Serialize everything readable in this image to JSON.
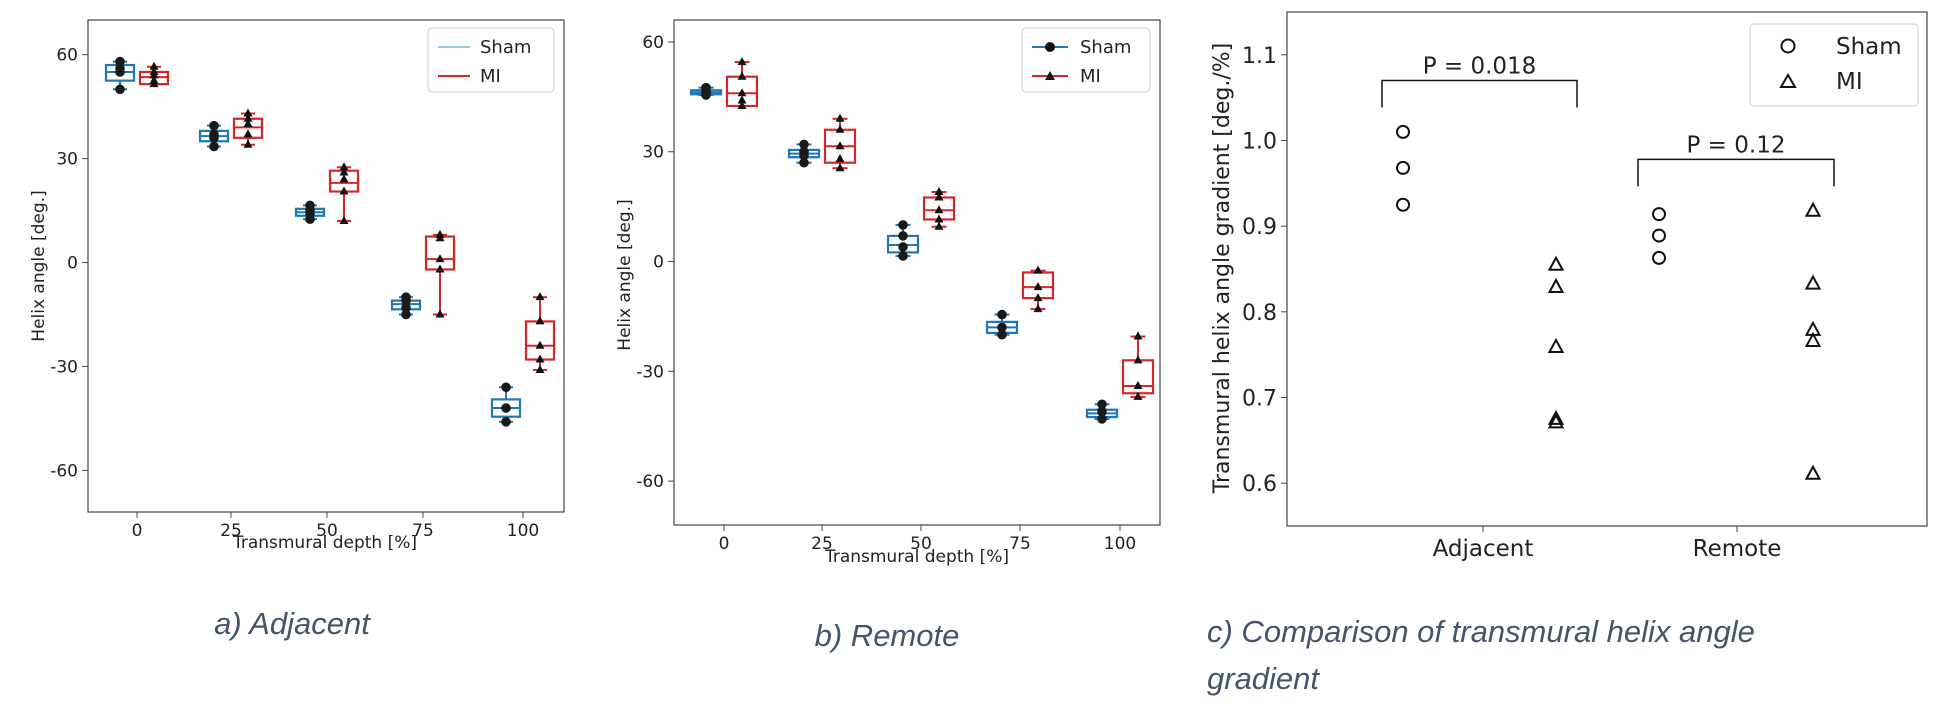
{
  "colors": {
    "sham": "#1f77b4",
    "mi": "#d62728",
    "sham_legend": "#9ecae1",
    "caption": "#44546a",
    "frame": "#444444"
  },
  "chart_data": [
    {
      "id": "a",
      "type": "box",
      "caption": "a) Adjacent",
      "xlabel": "Transmural depth [%]",
      "ylabel": "Helix angle [deg.]",
      "ylim": [
        -72,
        70
      ],
      "yticks": [
        60,
        30,
        0,
        -30,
        -60
      ],
      "categories": [
        "0",
        "25",
        "50",
        "75",
        "100"
      ],
      "legend": {
        "placement": "top-right",
        "entries": [
          "Sham",
          "MI"
        ],
        "markers": false
      },
      "series": [
        {
          "name": "Sham",
          "boxes": [
            {
              "min": 50,
              "q1": 52.5,
              "median": 55,
              "q3": 57,
              "max": 58,
              "points": [
                58,
                56,
                55,
                50
              ]
            },
            {
              "min": 33.5,
              "q1": 35,
              "median": 36.5,
              "q3": 38,
              "max": 39.5,
              "points": [
                39.5,
                37,
                36,
                33.5
              ]
            },
            {
              "min": 12.5,
              "q1": 13.5,
              "median": 14.5,
              "q3": 15.5,
              "max": 16.5,
              "points": [
                16.5,
                15,
                14,
                12.5
              ]
            },
            {
              "min": -15,
              "q1": -13.5,
              "median": -12,
              "q3": -11,
              "max": -10,
              "points": [
                -10,
                -11,
                -13,
                -15
              ]
            },
            {
              "min": -46,
              "q1": -44.5,
              "median": -42,
              "q3": -39.5,
              "max": -36,
              "points": [
                -36,
                -42,
                -46
              ]
            }
          ]
        },
        {
          "name": "MI",
          "boxes": [
            {
              "min": 51.5,
              "q1": 51.5,
              "median": 53.5,
              "q3": 55,
              "max": 56.5,
              "points": [
                56.5,
                55,
                54,
                52.5,
                51.5
              ]
            },
            {
              "min": 34,
              "q1": 36,
              "median": 39,
              "q3": 41.5,
              "max": 43,
              "points": [
                43,
                41.5,
                40,
                37,
                34
              ]
            },
            {
              "min": 12,
              "q1": 20.5,
              "median": 23,
              "q3": 26.5,
              "max": 27.5,
              "points": [
                27.5,
                26,
                24,
                20.5,
                12
              ]
            },
            {
              "min": -15,
              "q1": -2,
              "median": 1,
              "q3": 7.5,
              "max": 8,
              "points": [
                8,
                7,
                1,
                -2,
                -15
              ]
            },
            {
              "min": -31,
              "q1": -28,
              "median": -24,
              "q3": -17,
              "max": -10,
              "points": [
                -10,
                -17,
                -24,
                -28,
                -31
              ]
            }
          ]
        }
      ]
    },
    {
      "id": "b",
      "type": "box",
      "caption": "b) Remote",
      "xlabel": "Transmural depth [%]",
      "ylabel": "Helix angle [deg.]",
      "ylim": [
        -72,
        66
      ],
      "yticks": [
        60,
        30,
        0,
        -30,
        -60
      ],
      "categories": [
        "0",
        "25",
        "50",
        "75",
        "100"
      ],
      "legend": {
        "placement": "top-right",
        "entries": [
          "Sham",
          "MI"
        ],
        "markers": true
      },
      "series": [
        {
          "name": "Sham",
          "boxes": [
            {
              "min": 45.5,
              "q1": 45.7,
              "median": 46.2,
              "q3": 46.8,
              "max": 47.5,
              "points": [
                47.5,
                46.5,
                46,
                45.5
              ]
            },
            {
              "min": 27,
              "q1": 28.5,
              "median": 29.5,
              "q3": 30.5,
              "max": 32,
              "points": [
                32,
                30,
                29,
                27
              ]
            },
            {
              "min": 1.5,
              "q1": 2.5,
              "median": 4.5,
              "q3": 7,
              "max": 10,
              "points": [
                10,
                7,
                4,
                1.5
              ]
            },
            {
              "min": -20,
              "q1": -19.5,
              "median": -18,
              "q3": -16.5,
              "max": -14.5,
              "points": [
                -14.5,
                -18,
                -20
              ]
            },
            {
              "min": -43,
              "q1": -42.5,
              "median": -41.5,
              "q3": -40.5,
              "max": -39,
              "points": [
                -39,
                -41,
                -43
              ]
            }
          ]
        },
        {
          "name": "MI",
          "boxes": [
            {
              "min": 42.5,
              "q1": 42.5,
              "median": 46,
              "q3": 50.5,
              "max": 54.5,
              "points": [
                54.5,
                50.5,
                46,
                44,
                42.5
              ]
            },
            {
              "min": 25.5,
              "q1": 27,
              "median": 31.5,
              "q3": 36,
              "max": 39,
              "points": [
                39,
                36,
                31.5,
                28,
                25.5
              ]
            },
            {
              "min": 9.5,
              "q1": 11.5,
              "median": 14,
              "q3": 17.5,
              "max": 19,
              "points": [
                19,
                17.5,
                14,
                11.5,
                9.5
              ]
            },
            {
              "min": -13,
              "q1": -10,
              "median": -7,
              "q3": -3,
              "max": -2.5,
              "points": [
                -2.5,
                -7,
                -10,
                -13
              ]
            },
            {
              "min": -37,
              "q1": -36,
              "median": -34,
              "q3": -27,
              "max": -20.5,
              "points": [
                -20.5,
                -27,
                -34,
                -37
              ]
            }
          ]
        }
      ]
    },
    {
      "id": "c",
      "type": "scatter",
      "caption": "c) Comparison of transmural helix angle gradient",
      "xlabel": "",
      "ylabel": "Transmural helix angle gradient [deg./%]",
      "ylim": [
        0.55,
        1.15
      ],
      "yticks": [
        1.1,
        1.0,
        0.9,
        0.8,
        0.7,
        0.6
      ],
      "categories": [
        "Adjacent",
        "Remote"
      ],
      "legend": {
        "placement": "top-right",
        "entries": [
          "Sham",
          "MI"
        ]
      },
      "series": [
        {
          "name": "Sham",
          "marker": "circle",
          "values": {
            "Adjacent": [
              1.01,
              0.968,
              0.925
            ],
            "Remote": [
              0.914,
              0.889,
              0.863
            ]
          }
        },
        {
          "name": "MI",
          "marker": "triangle",
          "values": {
            "Adjacent": [
              0.855,
              0.829,
              0.759,
              0.675,
              0.671
            ],
            "Remote": [
              0.918,
              0.833,
              0.779,
              0.766,
              0.611
            ]
          }
        }
      ],
      "annotations": [
        {
          "group": "Adjacent",
          "text": "P = 0.018",
          "y": 1.07
        },
        {
          "group": "Remote",
          "text": "P = 0.12",
          "y": 0.978
        }
      ]
    }
  ]
}
